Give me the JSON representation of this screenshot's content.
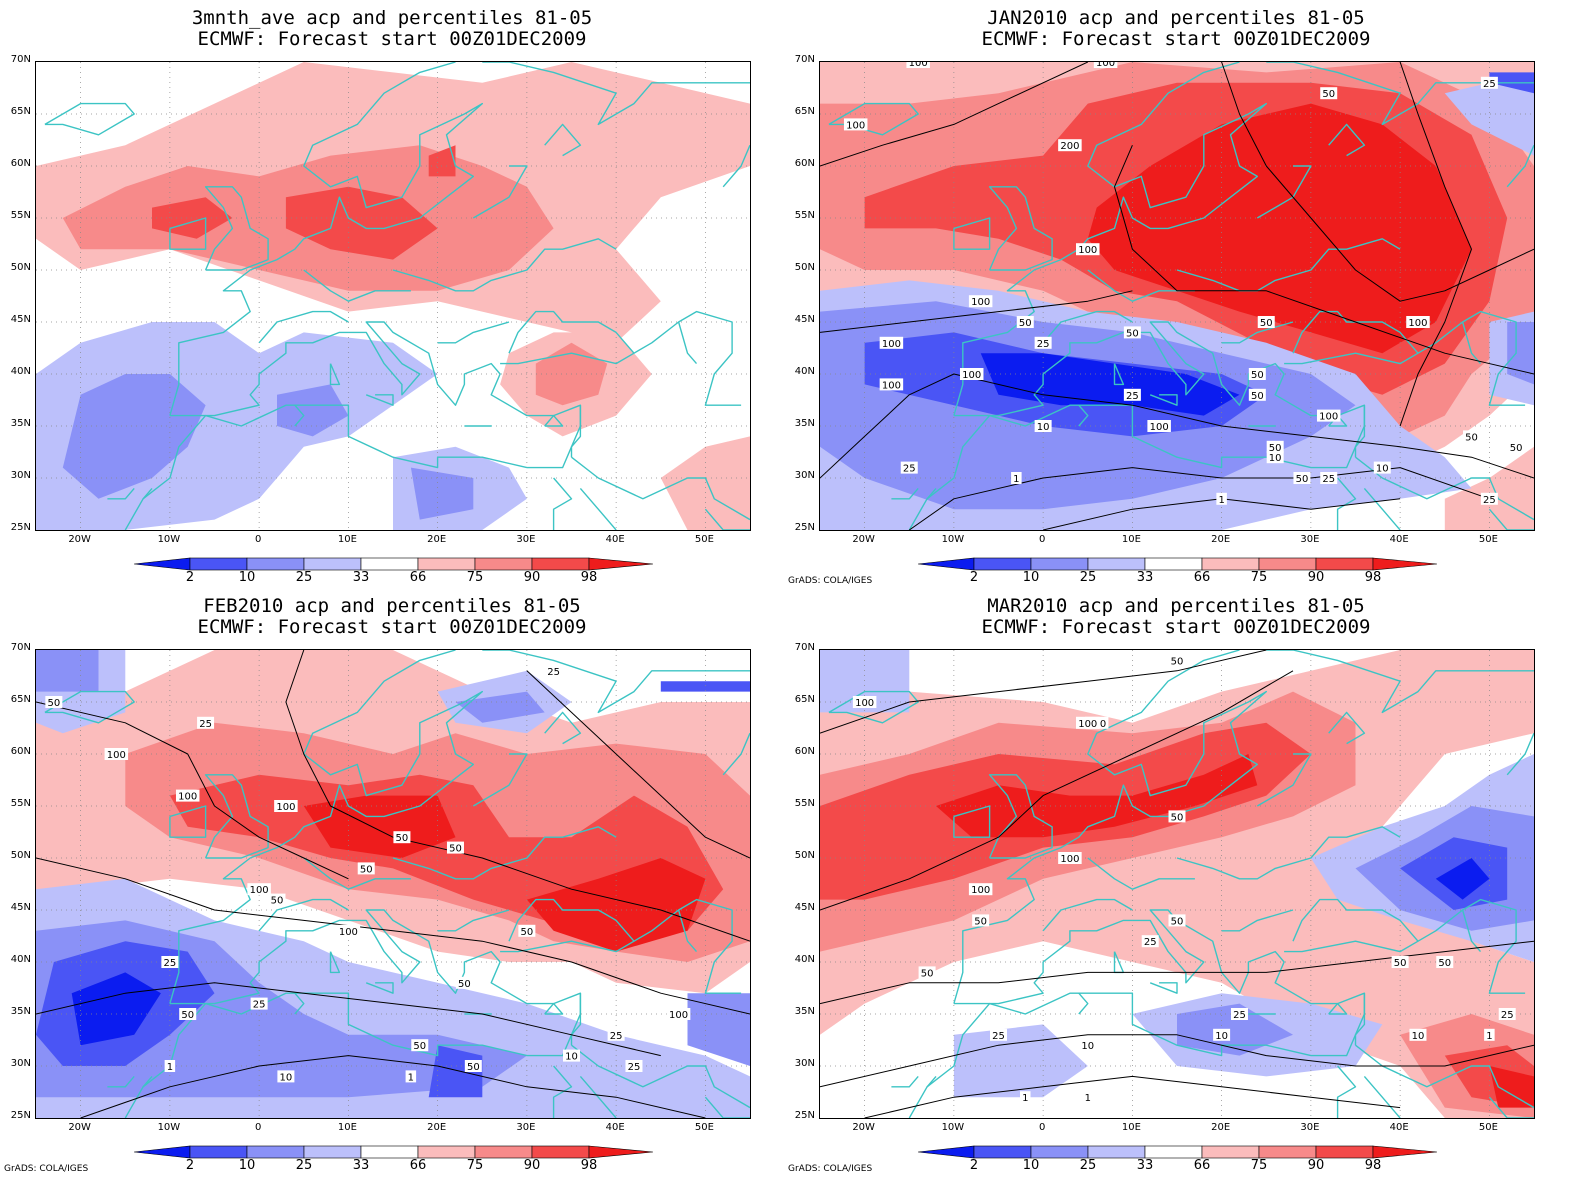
{
  "colors": {
    "blue_2": "#0b1cf0",
    "blue_10": "#4a55f5",
    "blue_25": "#8a91f7",
    "blue_33": "#bcc0fb",
    "red_66": "#fbbcbc",
    "red_75": "#f78a8a",
    "red_90": "#f34a4a",
    "red_98": "#ee1c1c",
    "coast": "#3cc4c4",
    "contour": "#000000"
  },
  "lat_labels": [
    "70N",
    "65N",
    "60N",
    "55N",
    "50N",
    "45N",
    "40N",
    "35N",
    "30N",
    "25N"
  ],
  "lon_labels": [
    "20W",
    "10W",
    "0",
    "10E",
    "20E",
    "30E",
    "40E",
    "50E"
  ],
  "colorbar": {
    "labels": [
      "2",
      "10",
      "25",
      "33",
      "66",
      "75",
      "90",
      "98"
    ]
  },
  "credit": "GrADS: COLA/IGES",
  "panels": [
    {
      "title1": "3mnth_ave acp and percentiles 81-05",
      "title2": "ECMWF: Forecast start 00Z01DEC2009",
      "show_credit": false,
      "contour_labels": []
    },
    {
      "title1": "JAN2010 acp and percentiles 81-05",
      "title2": "ECMWF: Forecast start 00Z01DEC2009",
      "show_credit": true,
      "contour_labels": [
        "100",
        "100",
        "50",
        "25",
        "100",
        "200",
        "100",
        "100",
        "50",
        "50",
        "25",
        "100",
        "100",
        "100",
        "50",
        "25",
        "50",
        "100",
        "50",
        "100",
        "25",
        "10",
        "100",
        "50",
        "50",
        "50",
        "10",
        "10",
        "1",
        "1",
        "25",
        "25",
        "50"
      ]
    },
    {
      "title1": "FEB2010 acp and percentiles 81-05",
      "title2": "ECMWF: Forecast start 00Z01DEC2009",
      "show_credit": true,
      "contour_labels": [
        "50",
        "25",
        "25",
        "100",
        "100",
        "100",
        "50",
        "50",
        "50",
        "100",
        "50",
        "50",
        "100",
        "50",
        "25",
        "50",
        "25",
        "50",
        "50",
        "10",
        "10",
        "1",
        "1",
        "25",
        "25",
        "100"
      ]
    },
    {
      "title1": "MAR2010 acp and percentiles 81-05",
      "title2": "ECMWF: Forecast start 00Z01DEC2009",
      "show_credit": true,
      "contour_labels": [
        "50",
        "100",
        "100",
        "100",
        "50",
        "100",
        "100",
        "50",
        "50",
        "25",
        "50",
        "50",
        "10",
        "10",
        "1",
        "1",
        "25",
        "25",
        "10",
        "50",
        "25",
        "1"
      ]
    }
  ]
}
